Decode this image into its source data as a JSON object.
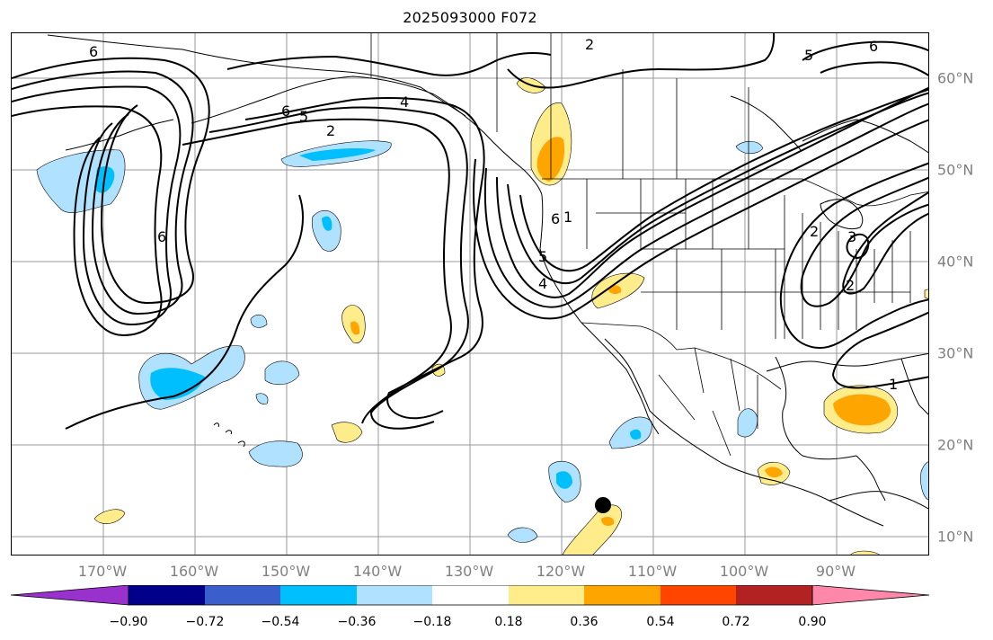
{
  "title": "2025093000 F072",
  "map": {
    "lat_labels": [
      "60°N",
      "50°N",
      "40°N",
      "30°N",
      "20°N",
      "10°N"
    ],
    "lon_labels": [
      "170°W",
      "160°W",
      "150°W",
      "140°W",
      "130°W",
      "120°W",
      "110°W",
      "100°W",
      "90°W"
    ],
    "gridline_color": "#999999",
    "land_outline_color": "#000000",
    "contour_labels": [
      "6",
      "2",
      "6",
      "5",
      "2",
      "4",
      "6",
      "6",
      "1",
      "5",
      "4",
      "3",
      "2",
      "1",
      "2",
      "5",
      "6"
    ],
    "marker": "black-dot"
  },
  "colorbar": {
    "tick_labels": [
      "−0.90",
      "−0.72",
      "−0.54",
      "−0.36",
      "−0.18",
      "0.18",
      "0.36",
      "0.54",
      "0.72",
      "0.90"
    ],
    "colors": [
      "#9932CC",
      "#00008B",
      "#3A5FCD",
      "#00BFFF",
      "#B0E2FF",
      "#FFFFFF",
      "#FFEC8B",
      "#FFA500",
      "#FF4500",
      "#B22222",
      "#FF88AA"
    ],
    "levels": [
      -0.9,
      -0.72,
      -0.54,
      -0.36,
      -0.18,
      0.18,
      0.36,
      0.54,
      0.72,
      0.9
    ]
  }
}
